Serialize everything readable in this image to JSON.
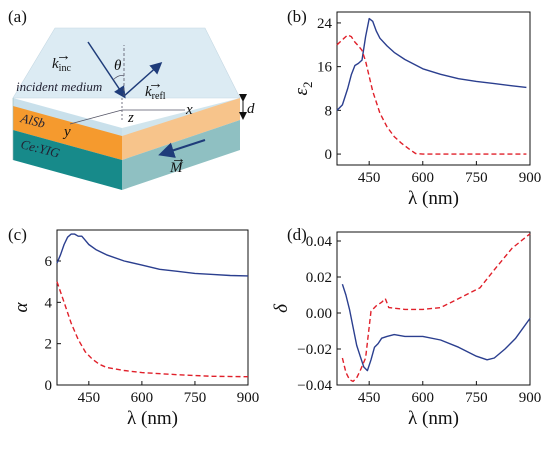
{
  "panels": {
    "a": "(a)",
    "b": "(b)",
    "c": "(c)",
    "d": "(d)"
  },
  "diagram": {
    "layers": [
      "incident medium",
      "AlSb",
      "Ce:YIG"
    ],
    "colors": {
      "incident": "#cfe3ee",
      "alsb": "#f59a2e",
      "ceyig": "#178a8a",
      "arrow": "#1f3c7a"
    },
    "symbols": {
      "k_inc": "k",
      "k_inc_sub": "inc",
      "k_refl": "k",
      "k_refl_sub": "refl",
      "theta": "θ",
      "x": "x",
      "y": "y",
      "z": "z",
      "d": "d",
      "M": "M"
    }
  },
  "chart_data": [
    {
      "panel": "b",
      "type": "line",
      "xlabel": "λ (nm)",
      "ylabel": "ε2",
      "ylabel_main": "ε",
      "ylabel_sub": "2",
      "xlim": [
        360,
        900
      ],
      "ylim": [
        -2,
        26
      ],
      "xticks": [
        450,
        600,
        750,
        900
      ],
      "yticks": [
        0,
        8,
        16,
        24
      ],
      "series": [
        {
          "style": "solid",
          "color": "#2b3f8f",
          "x": [
            360,
            375,
            390,
            400,
            410,
            420,
            430,
            440,
            450,
            460,
            470,
            480,
            500,
            520,
            550,
            600,
            650,
            700,
            750,
            800,
            850,
            890
          ],
          "y": [
            8.0,
            9.0,
            12.0,
            14.5,
            16.2,
            16.6,
            17.2,
            21.5,
            24.8,
            24.3,
            22.5,
            21.2,
            19.8,
            18.6,
            17.3,
            15.6,
            14.6,
            13.8,
            13.3,
            12.9,
            12.5,
            12.2
          ]
        },
        {
          "style": "dashed",
          "color": "#e0202a",
          "x": [
            360,
            380,
            390,
            400,
            410,
            420,
            430,
            440,
            460,
            480,
            500,
            520,
            540,
            560,
            580,
            600,
            700,
            800,
            890
          ],
          "y": [
            20.0,
            21.2,
            21.8,
            21.5,
            20.5,
            19.8,
            19.0,
            17.0,
            11.5,
            7.5,
            5.0,
            3.2,
            2.0,
            1.0,
            0.1,
            0.0,
            0.0,
            0.0,
            0.0
          ]
        }
      ]
    },
    {
      "panel": "c",
      "type": "line",
      "xlabel": "λ (nm)",
      "ylabel": "α",
      "xlim": [
        360,
        900
      ],
      "ylim": [
        0,
        7.5
      ],
      "xticks": [
        450,
        600,
        750,
        900
      ],
      "yticks": [
        0,
        2,
        4,
        6
      ],
      "series": [
        {
          "style": "solid",
          "color": "#2b3f8f",
          "x": [
            360,
            370,
            380,
            390,
            400,
            410,
            420,
            430,
            440,
            450,
            470,
            500,
            550,
            600,
            650,
            700,
            750,
            800,
            850,
            900
          ],
          "y": [
            5.9,
            6.3,
            6.8,
            7.15,
            7.3,
            7.3,
            7.2,
            7.2,
            7.0,
            6.8,
            6.55,
            6.3,
            6.0,
            5.8,
            5.6,
            5.5,
            5.4,
            5.35,
            5.3,
            5.28
          ]
        },
        {
          "style": "dashed",
          "color": "#e0202a",
          "x": [
            360,
            380,
            400,
            420,
            440,
            460,
            480,
            500,
            550,
            600,
            700,
            800,
            900
          ],
          "y": [
            5.0,
            4.0,
            3.0,
            2.2,
            1.6,
            1.25,
            1.0,
            0.85,
            0.7,
            0.6,
            0.5,
            0.42,
            0.4
          ]
        }
      ]
    },
    {
      "panel": "d",
      "type": "line",
      "xlabel": "λ (nm)",
      "ylabel": "δ",
      "xlim": [
        360,
        900
      ],
      "ylim": [
        -0.04,
        0.045
      ],
      "xticks": [
        450,
        600,
        750,
        900
      ],
      "yticks": [
        -0.04,
        -0.02,
        0.0,
        0.02,
        0.04
      ],
      "ytick_labels": [
        "−0.04",
        "−0.02",
        "0.00",
        "0.02",
        "0.04"
      ],
      "series": [
        {
          "style": "solid",
          "color": "#2b3f8f",
          "x": [
            375,
            385,
            395,
            405,
            415,
            425,
            435,
            445,
            455,
            465,
            475,
            485,
            500,
            520,
            550,
            600,
            650,
            700,
            750,
            780,
            800,
            830,
            860,
            900
          ],
          "y": [
            0.016,
            0.01,
            0.002,
            -0.008,
            -0.018,
            -0.024,
            -0.03,
            -0.032,
            -0.026,
            -0.019,
            -0.017,
            -0.014,
            -0.013,
            -0.012,
            -0.013,
            -0.013,
            -0.015,
            -0.019,
            -0.024,
            -0.026,
            -0.025,
            -0.02,
            -0.014,
            -0.003
          ]
        },
        {
          "style": "dashed",
          "color": "#e0202a",
          "x": [
            375,
            385,
            395,
            405,
            415,
            425,
            440,
            455,
            470,
            485,
            495,
            505,
            550,
            600,
            650,
            680,
            720,
            760,
            800,
            850,
            900
          ],
          "y": [
            -0.025,
            -0.033,
            -0.037,
            -0.038,
            -0.036,
            -0.032,
            -0.025,
            0.001,
            0.004,
            0.006,
            0.008,
            0.003,
            0.002,
            0.002,
            0.003,
            0.006,
            0.01,
            0.014,
            0.024,
            0.036,
            0.044
          ]
        }
      ]
    }
  ]
}
